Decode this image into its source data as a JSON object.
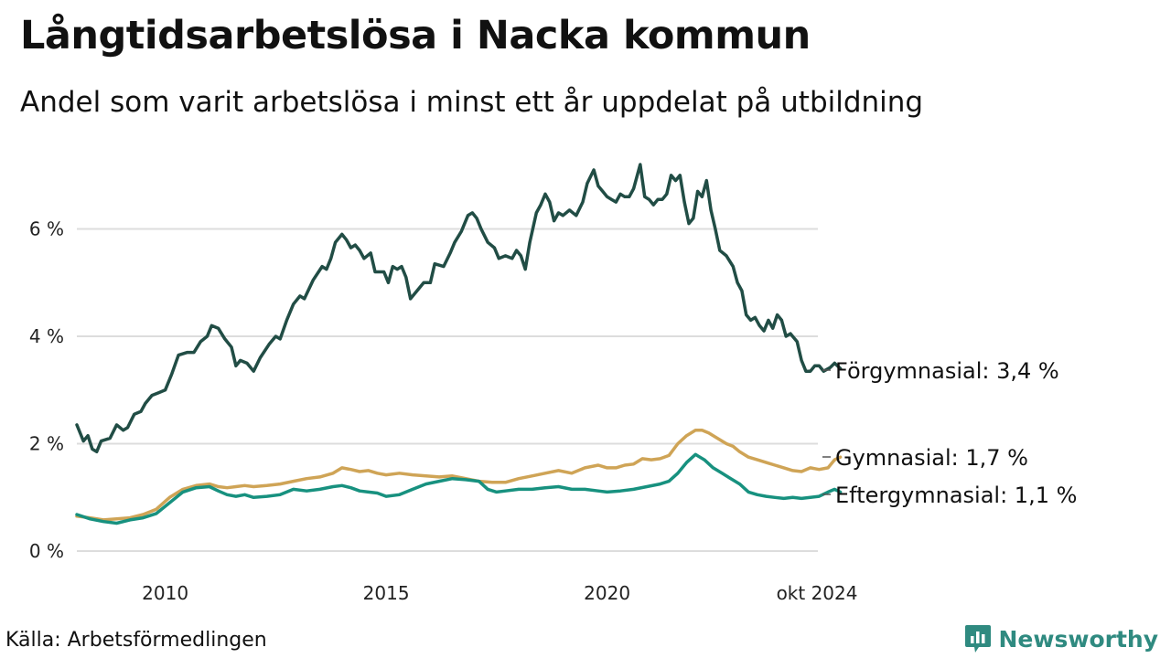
{
  "title": "Långtidsarbetslösa i Nacka kommun",
  "subtitle": "Andel som varit arbetslösa i minst ett år uppdelat på utbildning",
  "source": "Källa: Arbetsförmedlingen",
  "brand": {
    "name": "Newsworthy",
    "icon": "newsworthy-logo-icon",
    "color": "#2f8a80"
  },
  "chart_data": {
    "type": "line",
    "title": "Långtidsarbetslösa i Nacka kommun",
    "xlabel": "",
    "ylabel": "",
    "xlim": [
      2008.0,
      2024.75
    ],
    "ylim": [
      0,
      7.3
    ],
    "grid": true,
    "x_ticks": [
      {
        "value": 2010,
        "label": "2010"
      },
      {
        "value": 2015,
        "label": "2015"
      },
      {
        "value": 2020,
        "label": "2020"
      },
      {
        "value": 2024.75,
        "label": "okt 2024"
      }
    ],
    "y_ticks": [
      {
        "value": 0,
        "label": "0 %"
      },
      {
        "value": 2,
        "label": "2 %"
      },
      {
        "value": 4,
        "label": "4 %"
      },
      {
        "value": 6,
        "label": "6 %"
      }
    ],
    "series": [
      {
        "name": "Förgymnasial",
        "label": "Förgymnasial: 3,4 %",
        "color": "#214d45",
        "points": [
          [
            2008.0,
            2.35
          ],
          [
            2008.15,
            2.05
          ],
          [
            2008.25,
            2.15
          ],
          [
            2008.35,
            1.9
          ],
          [
            2008.45,
            1.85
          ],
          [
            2008.55,
            2.05
          ],
          [
            2008.75,
            2.1
          ],
          [
            2008.9,
            2.35
          ],
          [
            2009.05,
            2.25
          ],
          [
            2009.15,
            2.3
          ],
          [
            2009.3,
            2.55
          ],
          [
            2009.45,
            2.6
          ],
          [
            2009.55,
            2.75
          ],
          [
            2009.7,
            2.9
          ],
          [
            2009.85,
            2.95
          ],
          [
            2010.0,
            3.0
          ],
          [
            2010.15,
            3.3
          ],
          [
            2010.3,
            3.65
          ],
          [
            2010.5,
            3.7
          ],
          [
            2010.65,
            3.7
          ],
          [
            2010.8,
            3.9
          ],
          [
            2010.95,
            4.0
          ],
          [
            2011.05,
            4.2
          ],
          [
            2011.2,
            4.15
          ],
          [
            2011.35,
            3.95
          ],
          [
            2011.5,
            3.8
          ],
          [
            2011.6,
            3.45
          ],
          [
            2011.7,
            3.55
          ],
          [
            2011.85,
            3.5
          ],
          [
            2012.0,
            3.35
          ],
          [
            2012.15,
            3.6
          ],
          [
            2012.35,
            3.85
          ],
          [
            2012.5,
            4.0
          ],
          [
            2012.6,
            3.95
          ],
          [
            2012.75,
            4.3
          ],
          [
            2012.9,
            4.6
          ],
          [
            2013.05,
            4.75
          ],
          [
            2013.15,
            4.7
          ],
          [
            2013.35,
            5.05
          ],
          [
            2013.55,
            5.3
          ],
          [
            2013.65,
            5.25
          ],
          [
            2013.75,
            5.45
          ],
          [
            2013.85,
            5.75
          ],
          [
            2014.0,
            5.9
          ],
          [
            2014.1,
            5.8
          ],
          [
            2014.2,
            5.65
          ],
          [
            2014.3,
            5.7
          ],
          [
            2014.4,
            5.6
          ],
          [
            2014.5,
            5.45
          ],
          [
            2014.65,
            5.55
          ],
          [
            2014.75,
            5.2
          ],
          [
            2014.95,
            5.2
          ],
          [
            2015.05,
            5.0
          ],
          [
            2015.15,
            5.3
          ],
          [
            2015.25,
            5.25
          ],
          [
            2015.35,
            5.3
          ],
          [
            2015.45,
            5.1
          ],
          [
            2015.55,
            4.7
          ],
          [
            2015.7,
            4.85
          ],
          [
            2015.85,
            5.0
          ],
          [
            2016.0,
            5.0
          ],
          [
            2016.1,
            5.35
          ],
          [
            2016.3,
            5.3
          ],
          [
            2016.45,
            5.55
          ],
          [
            2016.55,
            5.75
          ],
          [
            2016.7,
            5.95
          ],
          [
            2016.85,
            6.25
          ],
          [
            2016.95,
            6.3
          ],
          [
            2017.05,
            6.2
          ],
          [
            2017.15,
            6.0
          ],
          [
            2017.3,
            5.75
          ],
          [
            2017.45,
            5.65
          ],
          [
            2017.55,
            5.45
          ],
          [
            2017.7,
            5.5
          ],
          [
            2017.85,
            5.45
          ],
          [
            2017.95,
            5.6
          ],
          [
            2018.05,
            5.5
          ],
          [
            2018.15,
            5.25
          ],
          [
            2018.25,
            5.75
          ],
          [
            2018.4,
            6.3
          ],
          [
            2018.5,
            6.45
          ],
          [
            2018.6,
            6.65
          ],
          [
            2018.7,
            6.5
          ],
          [
            2018.8,
            6.15
          ],
          [
            2018.9,
            6.3
          ],
          [
            2019.0,
            6.25
          ],
          [
            2019.15,
            6.35
          ],
          [
            2019.3,
            6.25
          ],
          [
            2019.45,
            6.5
          ],
          [
            2019.55,
            6.85
          ],
          [
            2019.7,
            7.1
          ],
          [
            2019.8,
            6.8
          ],
          [
            2019.9,
            6.7
          ],
          [
            2020.0,
            6.6
          ],
          [
            2020.1,
            6.55
          ],
          [
            2020.2,
            6.5
          ],
          [
            2020.3,
            6.65
          ],
          [
            2020.4,
            6.6
          ],
          [
            2020.5,
            6.6
          ],
          [
            2020.6,
            6.75
          ],
          [
            2020.75,
            7.2
          ],
          [
            2020.85,
            6.6
          ],
          [
            2020.95,
            6.55
          ],
          [
            2021.05,
            6.45
          ],
          [
            2021.15,
            6.55
          ],
          [
            2021.25,
            6.55
          ],
          [
            2021.35,
            6.65
          ],
          [
            2021.45,
            7.0
          ],
          [
            2021.55,
            6.9
          ],
          [
            2021.65,
            7.0
          ],
          [
            2021.75,
            6.5
          ],
          [
            2021.85,
            6.1
          ],
          [
            2021.95,
            6.2
          ],
          [
            2022.05,
            6.7
          ],
          [
            2022.15,
            6.6
          ],
          [
            2022.25,
            6.9
          ],
          [
            2022.35,
            6.35
          ],
          [
            2022.45,
            6.0
          ],
          [
            2022.55,
            5.6
          ],
          [
            2022.7,
            5.5
          ],
          [
            2022.85,
            5.3
          ],
          [
            2022.95,
            5.0
          ],
          [
            2023.05,
            4.85
          ],
          [
            2023.15,
            4.4
          ],
          [
            2023.25,
            4.3
          ],
          [
            2023.35,
            4.35
          ],
          [
            2023.45,
            4.2
          ],
          [
            2023.55,
            4.1
          ],
          [
            2023.65,
            4.3
          ],
          [
            2023.75,
            4.15
          ],
          [
            2023.85,
            4.4
          ],
          [
            2023.95,
            4.3
          ],
          [
            2024.05,
            4.0
          ],
          [
            2024.15,
            4.05
          ],
          [
            2024.3,
            3.9
          ],
          [
            2024.4,
            3.55
          ],
          [
            2024.5,
            3.35
          ],
          [
            2024.6,
            3.35
          ],
          [
            2024.7,
            3.45
          ],
          [
            2024.8,
            3.45
          ],
          [
            2024.9,
            3.35
          ],
          [
            2025.05,
            3.42
          ],
          [
            2025.15,
            3.5
          ],
          [
            2025.28,
            3.4
          ]
        ]
      },
      {
        "name": "Gymnasial",
        "label": "Gymnasial: 1,7 %",
        "color": "#cfa456",
        "points": [
          [
            2008.0,
            0.65
          ],
          [
            2008.3,
            0.62
          ],
          [
            2008.6,
            0.58
          ],
          [
            2008.9,
            0.6
          ],
          [
            2009.2,
            0.62
          ],
          [
            2009.5,
            0.68
          ],
          [
            2009.8,
            0.78
          ],
          [
            2010.1,
            1.0
          ],
          [
            2010.4,
            1.15
          ],
          [
            2010.7,
            1.22
          ],
          [
            2011.0,
            1.25
          ],
          [
            2011.2,
            1.2
          ],
          [
            2011.4,
            1.18
          ],
          [
            2011.6,
            1.2
          ],
          [
            2011.8,
            1.22
          ],
          [
            2012.0,
            1.2
          ],
          [
            2012.3,
            1.22
          ],
          [
            2012.6,
            1.25
          ],
          [
            2012.9,
            1.3
          ],
          [
            2013.2,
            1.35
          ],
          [
            2013.5,
            1.38
          ],
          [
            2013.8,
            1.45
          ],
          [
            2014.0,
            1.55
          ],
          [
            2014.2,
            1.52
          ],
          [
            2014.4,
            1.48
          ],
          [
            2014.6,
            1.5
          ],
          [
            2014.8,
            1.45
          ],
          [
            2015.0,
            1.42
          ],
          [
            2015.3,
            1.45
          ],
          [
            2015.6,
            1.42
          ],
          [
            2015.9,
            1.4
          ],
          [
            2016.2,
            1.38
          ],
          [
            2016.5,
            1.4
          ],
          [
            2016.8,
            1.35
          ],
          [
            2017.1,
            1.3
          ],
          [
            2017.4,
            1.28
          ],
          [
            2017.7,
            1.28
          ],
          [
            2018.0,
            1.35
          ],
          [
            2018.3,
            1.4
          ],
          [
            2018.6,
            1.45
          ],
          [
            2018.9,
            1.5
          ],
          [
            2019.2,
            1.45
          ],
          [
            2019.5,
            1.55
          ],
          [
            2019.8,
            1.6
          ],
          [
            2020.0,
            1.55
          ],
          [
            2020.2,
            1.55
          ],
          [
            2020.4,
            1.6
          ],
          [
            2020.6,
            1.62
          ],
          [
            2020.8,
            1.72
          ],
          [
            2021.0,
            1.7
          ],
          [
            2021.2,
            1.72
          ],
          [
            2021.4,
            1.78
          ],
          [
            2021.6,
            2.0
          ],
          [
            2021.8,
            2.15
          ],
          [
            2022.0,
            2.25
          ],
          [
            2022.15,
            2.25
          ],
          [
            2022.3,
            2.2
          ],
          [
            2022.5,
            2.1
          ],
          [
            2022.7,
            2.0
          ],
          [
            2022.85,
            1.95
          ],
          [
            2023.0,
            1.85
          ],
          [
            2023.2,
            1.75
          ],
          [
            2023.4,
            1.7
          ],
          [
            2023.6,
            1.65
          ],
          [
            2023.8,
            1.6
          ],
          [
            2024.0,
            1.55
          ],
          [
            2024.2,
            1.5
          ],
          [
            2024.4,
            1.48
          ],
          [
            2024.6,
            1.55
          ],
          [
            2024.8,
            1.52
          ],
          [
            2025.0,
            1.55
          ],
          [
            2025.15,
            1.7
          ],
          [
            2025.28,
            1.75
          ]
        ]
      },
      {
        "name": "Eftergymnasial",
        "label": "Eftergymnasial: 1,1 %",
        "color": "#17917f",
        "points": [
          [
            2008.0,
            0.68
          ],
          [
            2008.3,
            0.6
          ],
          [
            2008.6,
            0.55
          ],
          [
            2008.9,
            0.52
          ],
          [
            2009.2,
            0.58
          ],
          [
            2009.5,
            0.62
          ],
          [
            2009.8,
            0.7
          ],
          [
            2010.1,
            0.9
          ],
          [
            2010.4,
            1.1
          ],
          [
            2010.7,
            1.18
          ],
          [
            2011.0,
            1.2
          ],
          [
            2011.2,
            1.12
          ],
          [
            2011.4,
            1.05
          ],
          [
            2011.6,
            1.02
          ],
          [
            2011.8,
            1.05
          ],
          [
            2012.0,
            1.0
          ],
          [
            2012.3,
            1.02
          ],
          [
            2012.6,
            1.05
          ],
          [
            2012.9,
            1.15
          ],
          [
            2013.2,
            1.12
          ],
          [
            2013.5,
            1.15
          ],
          [
            2013.8,
            1.2
          ],
          [
            2014.0,
            1.22
          ],
          [
            2014.2,
            1.18
          ],
          [
            2014.4,
            1.12
          ],
          [
            2014.6,
            1.1
          ],
          [
            2014.8,
            1.08
          ],
          [
            2015.0,
            1.02
          ],
          [
            2015.3,
            1.05
          ],
          [
            2015.6,
            1.15
          ],
          [
            2015.9,
            1.25
          ],
          [
            2016.2,
            1.3
          ],
          [
            2016.5,
            1.35
          ],
          [
            2016.8,
            1.33
          ],
          [
            2017.1,
            1.3
          ],
          [
            2017.3,
            1.15
          ],
          [
            2017.5,
            1.1
          ],
          [
            2017.7,
            1.12
          ],
          [
            2018.0,
            1.15
          ],
          [
            2018.3,
            1.15
          ],
          [
            2018.6,
            1.18
          ],
          [
            2018.9,
            1.2
          ],
          [
            2019.2,
            1.15
          ],
          [
            2019.5,
            1.15
          ],
          [
            2019.8,
            1.12
          ],
          [
            2020.0,
            1.1
          ],
          [
            2020.3,
            1.12
          ],
          [
            2020.6,
            1.15
          ],
          [
            2020.9,
            1.2
          ],
          [
            2021.2,
            1.25
          ],
          [
            2021.4,
            1.3
          ],
          [
            2021.6,
            1.45
          ],
          [
            2021.8,
            1.65
          ],
          [
            2022.0,
            1.8
          ],
          [
            2022.2,
            1.7
          ],
          [
            2022.4,
            1.55
          ],
          [
            2022.6,
            1.45
          ],
          [
            2022.8,
            1.35
          ],
          [
            2023.0,
            1.25
          ],
          [
            2023.2,
            1.1
          ],
          [
            2023.4,
            1.05
          ],
          [
            2023.6,
            1.02
          ],
          [
            2023.8,
            1.0
          ],
          [
            2024.0,
            0.98
          ],
          [
            2024.2,
            1.0
          ],
          [
            2024.4,
            0.98
          ],
          [
            2024.6,
            1.0
          ],
          [
            2024.8,
            1.02
          ],
          [
            2025.0,
            1.1
          ],
          [
            2025.15,
            1.15
          ],
          [
            2025.28,
            1.1
          ]
        ]
      }
    ]
  }
}
